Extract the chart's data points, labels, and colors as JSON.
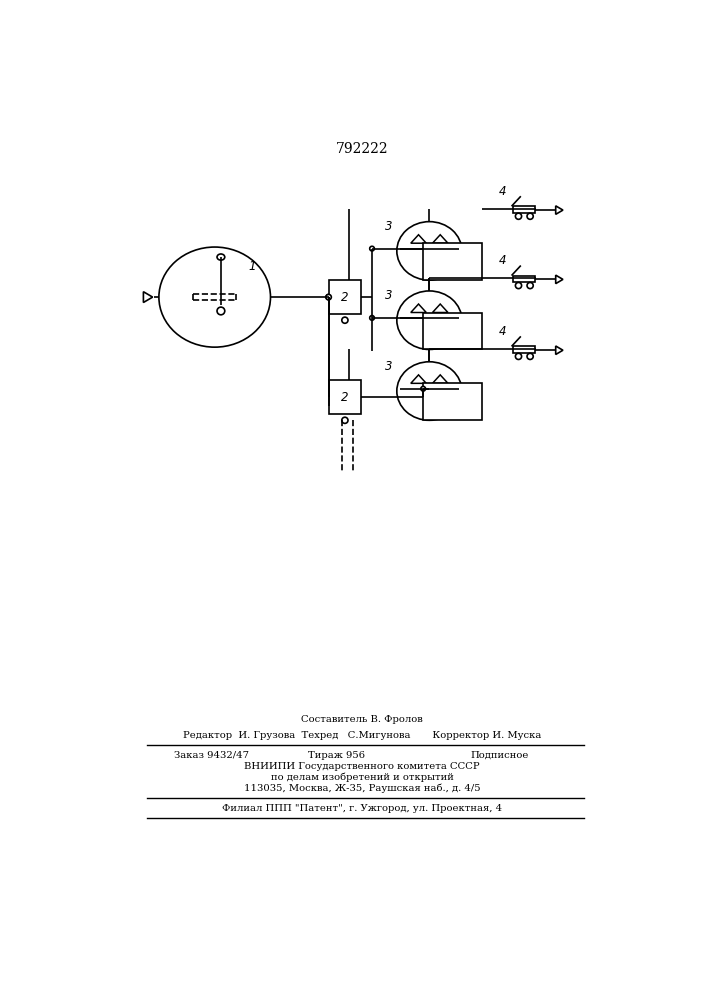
{
  "title": "792222",
  "title_fontsize": 10,
  "bg_color": "#ffffff",
  "line_color": "#000000",
  "footer": {
    "line1": "Составитель В. Фролов",
    "line2": "Редактор  И. Грузова  Техред   С.Мигунова       Корректор И. Муска",
    "line3_col1": "Заказ 9432/47",
    "line3_col2": "Тираж 956",
    "line3_col3": "Подписное",
    "line4": "ВНИИПИ Государственного комитета СССР",
    "line5": "по делам изобретений и открытий",
    "line6": "113035, Москва, Ж-35, Раушская наб., д. 4/5",
    "line7": "Филиал ППП \"Патент\", г. Ужгород, ул. Проектная, 4"
  }
}
